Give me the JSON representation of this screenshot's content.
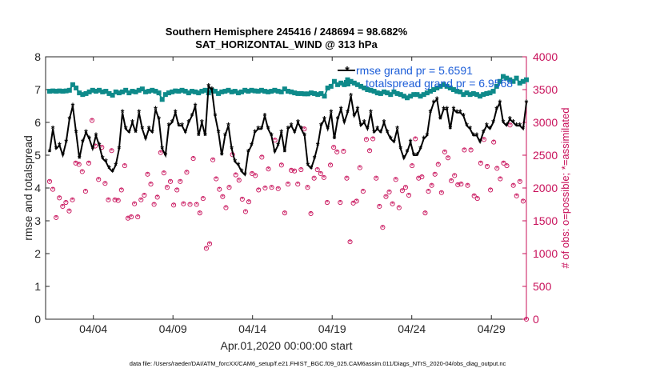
{
  "chart_data": {
    "type": "line",
    "title": "Southern Hemisphere 245416 / 248694 = 98.682%",
    "subtitle": "SAT_HORIZONTAL_WIND @ 313 hPa",
    "xlabel": "Apr.01,2020 00:00:00 start",
    "ylabel": "rmse and totalspread",
    "ylabel_right": "# of obs: o=possible; *=assimilated",
    "footer": "data file: /Users/raeder/DAI/ATM_forcXX/CAM6_setup/f.e21.FHIST_BGC.f09_025.CAM6assim.011/Diags_NTrS_2020-04/obs_diag_output.nc",
    "xlim": [
      1,
      31.2
    ],
    "ylim": [
      0,
      8
    ],
    "ylim_right": [
      0,
      4000
    ],
    "x_ticks": [
      4,
      9,
      14,
      19,
      24,
      29
    ],
    "x_tick_labels": [
      "04/04",
      "04/09",
      "04/14",
      "04/19",
      "04/24",
      "04/29"
    ],
    "y_ticks": [
      0,
      1,
      2,
      3,
      4,
      5,
      6,
      7,
      8
    ],
    "y_tick_labels": [
      "0",
      "1",
      "2",
      "3",
      "4",
      "5",
      "6",
      "7",
      "8"
    ],
    "y_right_ticks": [
      0,
      500,
      1000,
      1500,
      2000,
      2500,
      3000,
      3500,
      4000
    ],
    "y_right_tick_labels": [
      "0",
      "500",
      "1000",
      "1500",
      "2000",
      "2500",
      "3000",
      "3500",
      "4000"
    ],
    "legend_location": "top-right",
    "legend": [
      {
        "label": "rmse grand pr = 5.6591",
        "color": "#000000",
        "marker": "*"
      },
      {
        "label": "totalspread grand pr = 6.9568",
        "color": "#0e8a8a",
        "marker": "square"
      }
    ],
    "colors": {
      "rmse": "#000000",
      "spread": "#0e8a8a",
      "obs": "#c8105a",
      "legend_text": "#1d5ed8"
    },
    "series": [
      {
        "name": "rmse",
        "axis": "left",
        "values": [
          5.1,
          5.8,
          5.2,
          5.3,
          5.0,
          5.4,
          6.1,
          6.5,
          5.7,
          4.9,
          5.4,
          5.7,
          5.5,
          5.2,
          5.6,
          5.3,
          4.9,
          4.8,
          4.6,
          4.5,
          4.7,
          5.2,
          6.3,
          5.8,
          5.7,
          6.0,
          5.7,
          6.3,
          5.8,
          5.5,
          5.8,
          5.7,
          6.4,
          6.1,
          5.2,
          5.0,
          5.9,
          6.0,
          6.3,
          5.9,
          5.9,
          5.7,
          6.0,
          6.2,
          6.5,
          5.6,
          6.0,
          5.6,
          7.1,
          7.0,
          6.2,
          5.7,
          5.0,
          5.6,
          5.9,
          5.2,
          4.8,
          4.7,
          4.5,
          4.4,
          5.1,
          5.3,
          5.7,
          5.8,
          5.8,
          6.2,
          5.8,
          5.6,
          5.1,
          5.3,
          5.7,
          5.1,
          5.8,
          5.9,
          5.7,
          6.0,
          5.8,
          5.6,
          4.7,
          4.6,
          4.9,
          5.3,
          5.9,
          6.1,
          5.8,
          6.3,
          5.5,
          6.1,
          6.4,
          6.0,
          6.3,
          6.8,
          6.2,
          6.4,
          5.9,
          6.0,
          5.8,
          6.3,
          5.7,
          5.8,
          5.7,
          6.0,
          5.7,
          5.5,
          5.4,
          5.8,
          5.2,
          4.9,
          5.1,
          5.4,
          5.0,
          5.0,
          5.2,
          5.5,
          5.6,
          6.3,
          6.6,
          6.7,
          6.1,
          6.4,
          6.4,
          5.8,
          6.4,
          6.3,
          6.3,
          6.2,
          5.9,
          5.8,
          5.6,
          5.6,
          5.4,
          5.7,
          5.9,
          5.8,
          6.0,
          6.4,
          6.6,
          6.0,
          5.9,
          6.1,
          6.0,
          5.9,
          5.9,
          5.8,
          6.6
        ]
      },
      {
        "name": "totalspread",
        "axis": "left",
        "values": [
          6.95,
          6.96,
          6.95,
          6.96,
          6.95,
          6.96,
          6.98,
          7.15,
          7.05,
          6.9,
          6.85,
          6.88,
          6.93,
          6.98,
          6.95,
          6.98,
          6.93,
          6.95,
          6.88,
          6.83,
          6.93,
          6.9,
          6.93,
          6.98,
          6.9,
          6.95,
          6.93,
          6.98,
          7.02,
          6.93,
          6.95,
          6.98,
          6.95,
          6.9,
          6.7,
          6.85,
          6.9,
          6.93,
          6.96,
          6.95,
          6.98,
          6.95,
          6.9,
          6.95,
          6.93,
          6.9,
          6.95,
          6.98,
          6.9,
          6.98,
          6.95,
          6.88,
          6.93,
          6.95,
          6.98,
          6.93,
          6.95,
          6.9,
          6.93,
          6.98,
          6.95,
          6.98,
          6.96,
          6.95,
          6.98,
          6.95,
          6.93,
          6.95,
          6.98,
          6.95,
          6.93,
          7.02,
          6.95,
          6.93,
          6.9,
          6.88,
          6.88,
          6.87,
          6.87,
          6.9,
          6.88,
          6.85,
          6.88,
          6.8,
          7.05,
          7.1,
          7.25,
          7.15,
          7.2,
          7.15,
          7.3,
          7.25,
          7.2,
          7.15,
          7.1,
          7.05,
          7.0,
          6.98,
          6.95,
          6.9,
          6.88,
          6.93,
          6.9,
          6.85,
          6.93,
          6.88,
          6.85,
          6.8,
          6.75,
          6.8,
          6.85,
          6.85,
          6.8,
          6.85,
          6.9,
          6.95,
          7.0,
          7.05,
          7.1,
          7.15,
          7.1,
          7.05,
          7.0,
          6.95,
          6.93,
          6.85,
          6.9,
          6.85,
          6.88,
          6.85,
          6.8,
          6.85,
          6.88,
          6.9,
          6.95,
          7.1,
          7.25,
          7.4,
          7.35,
          7.3,
          7.25,
          7.35,
          7.2,
          7.25,
          7.3
        ]
      },
      {
        "name": "# of obs (possible / assimilated)",
        "axis": "right",
        "values": [
          2100,
          1980,
          1550,
          1850,
          1720,
          1780,
          1650,
          1820,
          2380,
          2360,
          2250,
          1950,
          2380,
          3030,
          2640,
          2130,
          2620,
          2070,
          1820,
          2570,
          1820,
          1810,
          1970,
          2340,
          1540,
          1560,
          1760,
          1560,
          1820,
          1890,
          2210,
          2060,
          1750,
          1860,
          2540,
          2230,
          2010,
          2100,
          1740,
          1970,
          2100,
          1760,
          2240,
          1750,
          2450,
          1750,
          1620,
          1840,
          1080,
          1150,
          2430,
          2140,
          1980,
          1870,
          1700,
          2010,
          2510,
          2200,
          2120,
          1830,
          1640,
          1790,
          2220,
          2190,
          1970,
          2470,
          2000,
          2290,
          2010,
          2730,
          1990,
          2350,
          1620,
          2060,
          2270,
          2260,
          2060,
          2280,
          2900,
          2010,
          1610,
          2150,
          2280,
          2220,
          2160,
          1780,
          2350,
          2620,
          2550,
          1780,
          2560,
          2150,
          1180,
          1770,
          1800,
          2310,
          1950,
          2740,
          2570,
          2750,
          2150,
          1720,
          1400,
          1870,
          1940,
          1760,
          2130,
          1700,
          1960,
          2010,
          1890,
          2340,
          2750,
          2150,
          2170,
          1620,
          1950,
          2040,
          2210,
          2360,
          1930,
          2550,
          2460,
          2110,
          2190,
          2050,
          2060,
          2580,
          2040,
          2580,
          1880,
          1840,
          2380,
          2740,
          2330,
          1970,
          2700,
          2300,
          2140,
          2380,
          2340,
          2960,
          2040,
          1880,
          2100,
          1800,
          0
        ]
      }
    ]
  }
}
